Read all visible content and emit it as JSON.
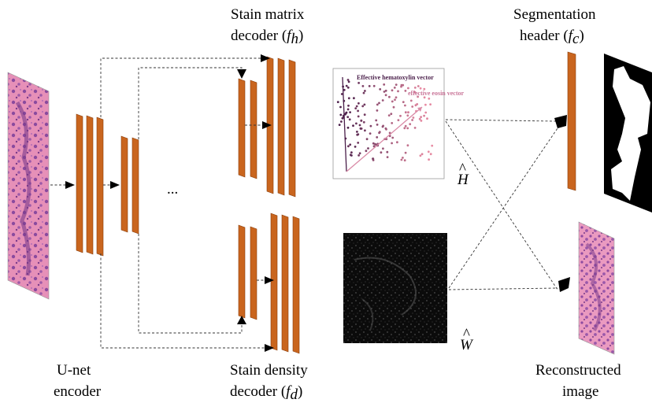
{
  "labels": {
    "stain_matrix_decoder": {
      "line1": "Stain matrix",
      "line2_prefix": "decoder (",
      "func_var": "f",
      "func_sub": "h",
      "suffix": ")"
    },
    "segmentation_header": {
      "line1": "Segmentation",
      "line2_prefix": "header (",
      "func_var": "f",
      "func_sub": "c",
      "suffix": ")"
    },
    "stain_density_decoder": {
      "line1": "Stain density",
      "line2_prefix": "decoder (",
      "func_var": "f",
      "func_sub": "d",
      "suffix": ")"
    },
    "unet_encoder": {
      "line1": "U-net",
      "line2": "encoder"
    },
    "reconstructed_image": {
      "line1": "Reconstructed",
      "line2": "image"
    },
    "ellipsis": "...",
    "h_hat": "H",
    "w_hat": "W"
  },
  "scatter_plot": {
    "hematoxylin_label": "Effective hematoxylin vector",
    "eosin_label": "effective eosin vector",
    "hematoxylin_color": "#4a1f4a",
    "eosin_color": "#d98aa6"
  },
  "colors": {
    "block_fill": "#c9651e",
    "tissue_pink": "#e58fb5",
    "tissue_purple": "#8a4a9e"
  }
}
